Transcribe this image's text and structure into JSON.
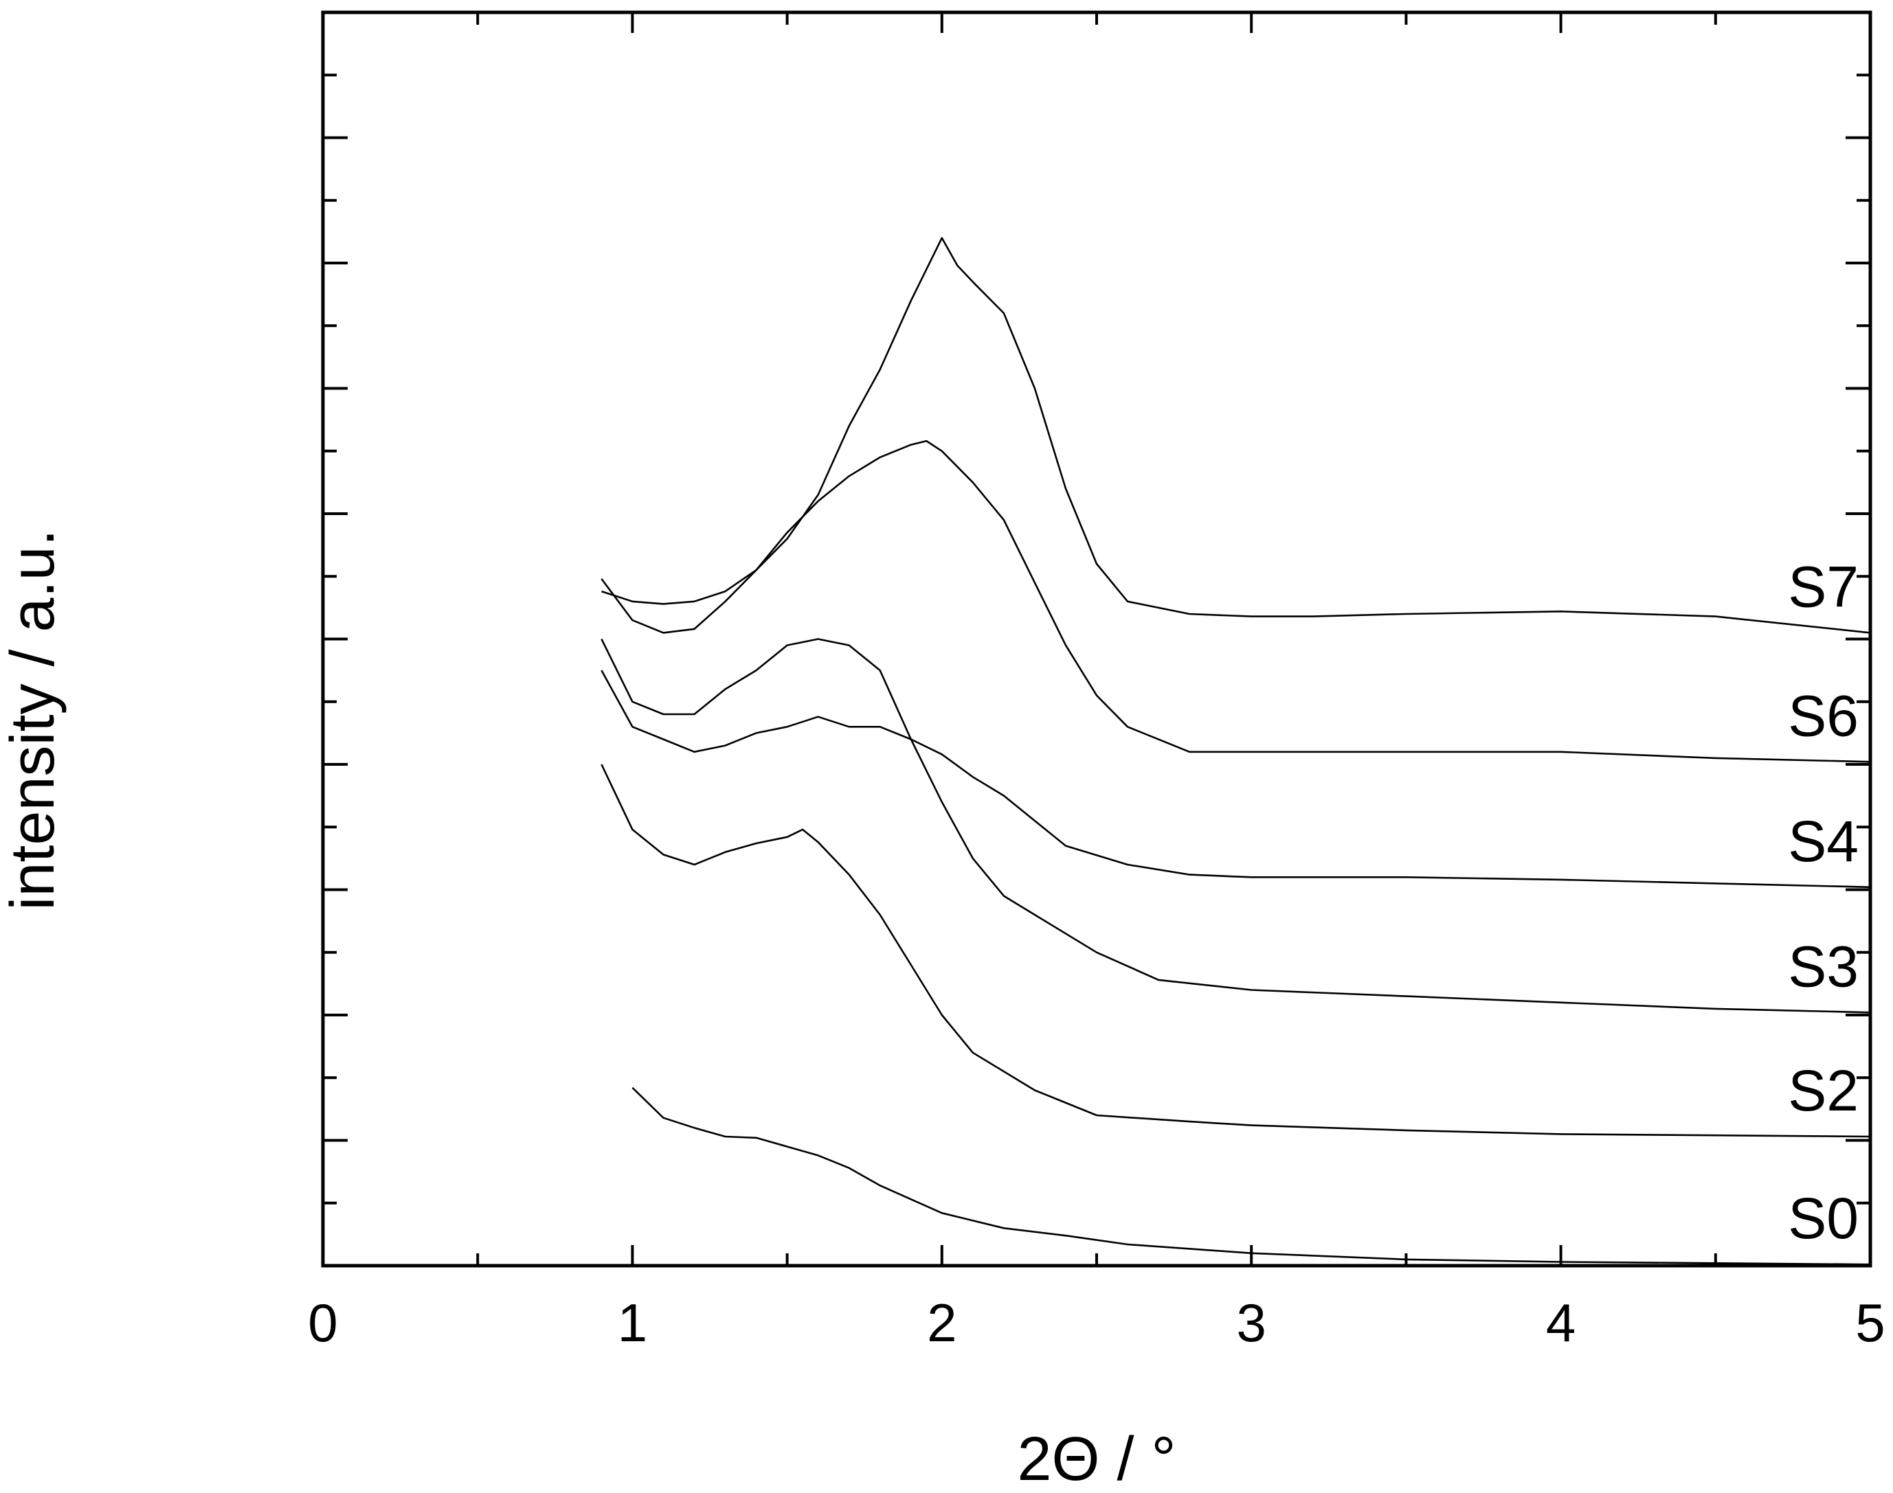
{
  "chart_data": {
    "type": "line",
    "title": "",
    "xlabel": "2Θ / °",
    "ylabel": "intensity /  a.u.",
    "xlim": [
      0,
      5
    ],
    "ylim": [
      0,
      10
    ],
    "x_ticks": [
      "0",
      "1",
      "2",
      "3",
      "4",
      "5"
    ],
    "y_ticks_labeled": false,
    "grid": false,
    "legend": "none (series labels placed at right end of each curve)",
    "series": [
      {
        "name": "S0",
        "x": [
          1.0,
          1.1,
          1.2,
          1.3,
          1.4,
          1.5,
          1.6,
          1.7,
          1.8,
          1.9,
          2.0,
          2.2,
          2.4,
          2.6,
          3.0,
          3.5,
          4.0,
          4.5,
          5.0
        ],
        "y": [
          1.42,
          1.18,
          1.1,
          1.03,
          1.02,
          0.95,
          0.88,
          0.78,
          0.64,
          0.53,
          0.42,
          0.3,
          0.24,
          0.17,
          0.1,
          0.05,
          0.03,
          0.02,
          0.01
        ]
      },
      {
        "name": "S2",
        "x": [
          0.9,
          1.0,
          1.1,
          1.2,
          1.3,
          1.4,
          1.5,
          1.55,
          1.6,
          1.7,
          1.8,
          1.9,
          2.0,
          2.1,
          2.3,
          2.5,
          2.8,
          3.0,
          3.5,
          4.0,
          4.5,
          5.0
        ],
        "y": [
          4.0,
          3.48,
          3.28,
          3.2,
          3.3,
          3.37,
          3.42,
          3.48,
          3.38,
          3.12,
          2.8,
          2.4,
          2.0,
          1.7,
          1.4,
          1.2,
          1.15,
          1.12,
          1.08,
          1.05,
          1.04,
          1.03
        ]
      },
      {
        "name": "S3",
        "x": [
          0.9,
          1.0,
          1.1,
          1.2,
          1.3,
          1.4,
          1.5,
          1.6,
          1.7,
          1.8,
          1.9,
          2.0,
          2.1,
          2.2,
          2.3,
          2.5,
          2.7,
          3.0,
          3.5,
          4.0,
          4.5,
          5.0
        ],
        "y": [
          5.0,
          4.5,
          4.4,
          4.4,
          4.6,
          4.75,
          4.95,
          5.0,
          4.95,
          4.75,
          4.2,
          3.7,
          3.25,
          2.95,
          2.8,
          2.5,
          2.28,
          2.2,
          2.15,
          2.1,
          2.05,
          2.02
        ]
      },
      {
        "name": "S4",
        "x": [
          0.9,
          1.0,
          1.1,
          1.2,
          1.3,
          1.4,
          1.5,
          1.6,
          1.7,
          1.8,
          1.9,
          2.0,
          2.1,
          2.2,
          2.3,
          2.4,
          2.6,
          2.8,
          3.0,
          3.5,
          4.0,
          4.5,
          5.0
        ],
        "y": [
          4.75,
          4.3,
          4.2,
          4.1,
          4.15,
          4.25,
          4.3,
          4.38,
          4.3,
          4.3,
          4.2,
          4.08,
          3.9,
          3.75,
          3.55,
          3.35,
          3.2,
          3.12,
          3.1,
          3.1,
          3.08,
          3.05,
          3.02
        ]
      },
      {
        "name": "S6",
        "x": [
          0.9,
          1.0,
          1.1,
          1.2,
          1.3,
          1.4,
          1.5,
          1.6,
          1.7,
          1.8,
          1.9,
          1.95,
          2.0,
          2.1,
          2.2,
          2.3,
          2.4,
          2.5,
          2.6,
          2.8,
          3.0,
          3.5,
          4.0,
          4.5,
          5.0
        ],
        "y": [
          5.48,
          5.15,
          5.05,
          5.08,
          5.3,
          5.55,
          5.85,
          6.1,
          6.3,
          6.45,
          6.55,
          6.58,
          6.5,
          6.25,
          5.95,
          5.45,
          4.95,
          4.55,
          4.3,
          4.1,
          4.1,
          4.1,
          4.1,
          4.05,
          4.02
        ]
      },
      {
        "name": "S7",
        "x": [
          0.9,
          1.0,
          1.1,
          1.2,
          1.3,
          1.4,
          1.5,
          1.6,
          1.7,
          1.8,
          1.9,
          2.0,
          2.05,
          2.1,
          2.2,
          2.3,
          2.4,
          2.5,
          2.6,
          2.8,
          3.0,
          3.2,
          3.5,
          4.0,
          4.5,
          5.0
        ],
        "y": [
          5.38,
          5.3,
          5.28,
          5.3,
          5.38,
          5.55,
          5.8,
          6.15,
          6.7,
          7.15,
          7.7,
          8.2,
          7.98,
          7.85,
          7.6,
          7.0,
          6.2,
          5.6,
          5.3,
          5.2,
          5.18,
          5.18,
          5.2,
          5.22,
          5.18,
          5.05
        ]
      }
    ]
  }
}
